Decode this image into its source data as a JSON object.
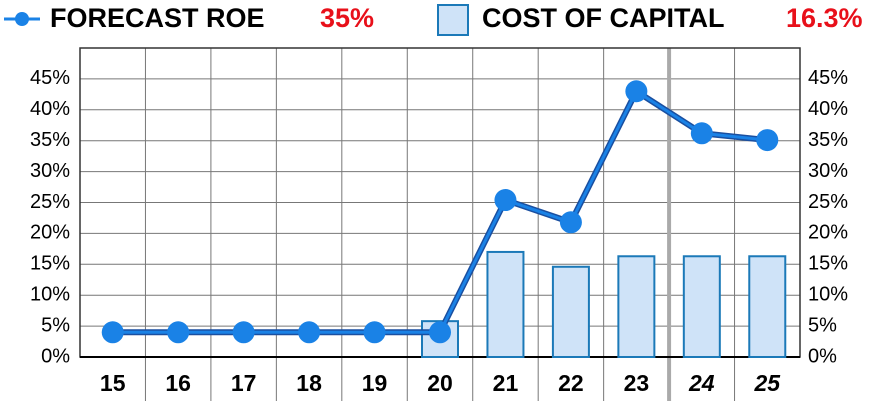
{
  "chart_data": {
    "type": "bar-line",
    "categories": [
      "15",
      "16",
      "17",
      "18",
      "19",
      "20",
      "21",
      "22",
      "23",
      "24",
      "25"
    ],
    "italic_categories": [
      "24",
      "25"
    ],
    "series": [
      {
        "name": "FORECAST ROE",
        "type": "line",
        "color": "#1a82e6",
        "headline": {
          "value": 35,
          "label": "35%"
        },
        "values": [
          4,
          4,
          4,
          4,
          4,
          4,
          25.4,
          21.8,
          43,
          36.2,
          35.1
        ]
      },
      {
        "name": "COST OF CAPITAL",
        "type": "bar",
        "color": "#cfe3f8",
        "headline": {
          "value": 16.3,
          "label": "16.3%"
        },
        "values": [
          null,
          null,
          null,
          null,
          null,
          5.8,
          17,
          14.6,
          16.3,
          16.3,
          16.3
        ]
      }
    ],
    "ylim": [
      0,
      50
    ],
    "yticks": [
      {
        "value": 0,
        "label": "0%"
      },
      {
        "value": 5,
        "label": "5%"
      },
      {
        "value": 10,
        "label": "10%"
      },
      {
        "value": 15,
        "label": "15%"
      },
      {
        "value": 20,
        "label": "20%"
      },
      {
        "value": 25,
        "label": "25%"
      },
      {
        "value": 30,
        "label": "30%"
      },
      {
        "value": 35,
        "label": "35%"
      },
      {
        "value": 40,
        "label": "40%"
      },
      {
        "value": 45,
        "label": "45%"
      }
    ],
    "grid": true
  }
}
